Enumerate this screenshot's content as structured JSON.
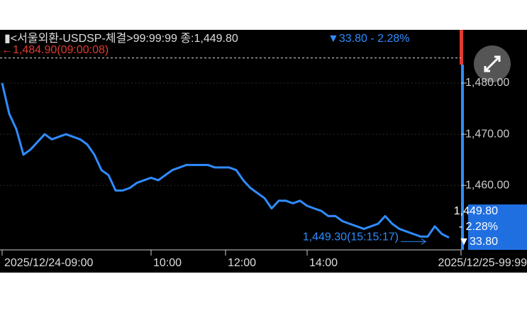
{
  "chart_data": {
    "type": "line",
    "header": {
      "title": "▮<서울외환-USDSP-체결>99:99:99 종:1,449.80",
      "change": "▼33.80  - 2.28%"
    },
    "high": {
      "value": 1484.9,
      "label": "←1,484.90(09:00:08)"
    },
    "low": {
      "value": 1449.3,
      "label": "1,449.30(15:15:17)"
    },
    "last_box": [
      "1,449.80",
      "- 2.28%",
      "▼33.80"
    ],
    "xlim": [
      -0.3,
      64.7
    ],
    "ylim": [
      1447.4,
      1490.4
    ],
    "yticks": [
      {
        "value": 1480,
        "label": "1,480.00"
      },
      {
        "value": 1470,
        "label": "1,470.00"
      },
      {
        "value": 1460,
        "label": "1,460.00"
      }
    ],
    "xticks": [
      {
        "value": 0,
        "label": "2025/12/24-09:00"
      },
      {
        "value": 21,
        "label": "10:00"
      },
      {
        "value": 31.5,
        "label": "12:00"
      },
      {
        "value": 43,
        "label": "14:00"
      },
      {
        "value": 64.7,
        "label": "2025/12/25-99:99"
      }
    ],
    "grid": true,
    "series": [
      {
        "color": "#2f8cff",
        "x": [
          0,
          1,
          2,
          3,
          4,
          5,
          6,
          7,
          8,
          9,
          10,
          11,
          12,
          13,
          14,
          15,
          16,
          17,
          18,
          19,
          20,
          21,
          22,
          23,
          24,
          25,
          26,
          27,
          28,
          29,
          30,
          31,
          32,
          33,
          34,
          35,
          36,
          37,
          38,
          39,
          40,
          41,
          42,
          43,
          44,
          45,
          46,
          47,
          48,
          49,
          50,
          51,
          52,
          53,
          54,
          55,
          56,
          57,
          58,
          59,
          60,
          61,
          62,
          63
        ],
        "values": [
          1480,
          1474,
          1471,
          1466,
          1467,
          1468.5,
          1470,
          1469,
          1469.5,
          1470,
          1469.5,
          1469,
          1468,
          1466,
          1463,
          1462,
          1459,
          1459,
          1459.5,
          1460.5,
          1461,
          1461.5,
          1461,
          1462,
          1463,
          1463.5,
          1464,
          1464,
          1464,
          1464,
          1463.5,
          1463.5,
          1463.5,
          1463,
          1461,
          1459.5,
          1458.5,
          1457.5,
          1455.5,
          1457,
          1457,
          1456.5,
          1457,
          1456,
          1455.5,
          1455,
          1454,
          1454,
          1453,
          1452.5,
          1452,
          1451.5,
          1452,
          1452.5,
          1454,
          1452.5,
          1451.5,
          1451,
          1450.5,
          1450,
          1450,
          1452,
          1450.5,
          1449.8
        ]
      }
    ]
  }
}
